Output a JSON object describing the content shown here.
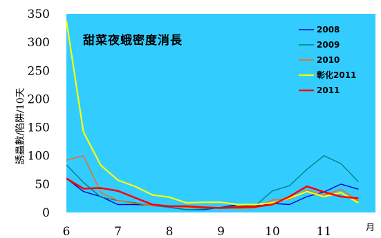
{
  "chart_data": {
    "type": "line",
    "title": "甜菜夜蛾密度消長",
    "ylabel": "誘蟲數/陷阱/10天",
    "xlabel": "月",
    "ylim": [
      0,
      350
    ],
    "yticks": [
      0,
      50,
      100,
      150,
      200,
      250,
      300,
      350
    ],
    "xticks": [
      6,
      7,
      8,
      9,
      10,
      11
    ],
    "xlim": [
      6,
      12
    ],
    "grid": false,
    "legend": "top-right",
    "background": "#33ccff",
    "series": [
      {
        "name": "2008",
        "color": "#0000cc",
        "x": [
          6,
          6.33,
          6.67,
          7,
          7.33,
          7.67,
          8,
          8.33,
          8.67,
          9,
          9.33,
          9.67,
          10,
          10.33,
          10.67,
          11,
          11.33,
          11.67
        ],
        "values": [
          60,
          37,
          28,
          14,
          14,
          13,
          9,
          5,
          5,
          9,
          14,
          12,
          16,
          14,
          28,
          36,
          50,
          41
        ]
      },
      {
        "name": "2009",
        "color": "#008080",
        "x": [
          6,
          6.33,
          6.67,
          7,
          7.33,
          7.67,
          8,
          8.33,
          8.67,
          9,
          9.33,
          9.67,
          10,
          10.33,
          10.67,
          11,
          11.33,
          11.67
        ],
        "values": [
          84,
          53,
          27,
          21,
          17,
          12,
          9,
          5,
          6,
          9,
          11,
          12,
          38,
          47,
          76,
          100,
          86,
          54
        ]
      },
      {
        "name": "2010",
        "color": "#ff6600",
        "x": [
          6,
          6.33,
          6.67,
          7,
          7.33,
          7.67,
          8,
          8.33,
          8.67,
          9,
          9.33,
          9.67,
          10,
          10.33,
          10.67,
          11,
          11.33,
          11.67
        ],
        "values": [
          92,
          100,
          35,
          21,
          16,
          12,
          11,
          9,
          8,
          8,
          7,
          8,
          22,
          23,
          39,
          30,
          41,
          20
        ]
      },
      {
        "name": "彰化2011",
        "color": "#ffff00",
        "x": [
          6,
          6.33,
          6.67,
          7,
          7.33,
          7.67,
          8,
          8.33,
          8.67,
          9,
          9.33,
          9.67,
          10,
          10.33,
          10.67,
          11,
          11.33,
          11.67
        ],
        "values": [
          338,
          142,
          83,
          57,
          46,
          31,
          27,
          17,
          18,
          18,
          14,
          14,
          17,
          25,
          37,
          28,
          35,
          17
        ]
      },
      {
        "name": "2011",
        "color": "#ff0000",
        "x": [
          6,
          6.33,
          6.67,
          7,
          7.33,
          7.67,
          8,
          8.33,
          8.67,
          9,
          9.33,
          9.67,
          10,
          10.33,
          10.67,
          11,
          11.33,
          11.67
        ],
        "values": [
          60,
          42,
          43,
          38,
          26,
          14,
          11,
          11,
          9,
          8,
          9,
          10,
          14,
          28,
          46,
          36,
          28,
          25
        ]
      }
    ]
  }
}
